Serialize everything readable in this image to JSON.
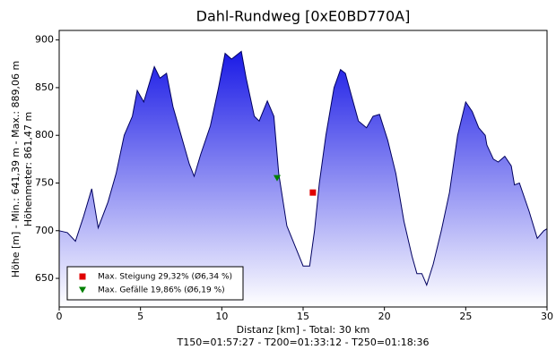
{
  "chart_data": {
    "type": "area",
    "title": "Dahl-Rundweg [0xE0BD770A]",
    "y_label": "Höhe [m] - Min.: 641,39 m - Max.: 889,06 m",
    "y_label2": "Höhenmeter: 861,47 m",
    "x_label": "Distanz [km] - Total: 30 km",
    "x_label2": "T150=01:57:27 - T200=01:33:12 - T250=01:18:36",
    "color": "#1a1ae6",
    "x": [
      0,
      0.5,
      1,
      1.5,
      2,
      2.4,
      3,
      3.5,
      4,
      4.5,
      4.8,
      5.2,
      5.85,
      6.2,
      6.6,
      7,
      7.5,
      8,
      8.3,
      8.7,
      9.3,
      9.8,
      10.2,
      10.6,
      11.2,
      11.5,
      12,
      12.3,
      12.8,
      13.2,
      13.5,
      14,
      14.6,
      15,
      15.4,
      15.7,
      16,
      16.4,
      16.9,
      17.3,
      17.6,
      18,
      18.4,
      18.9,
      19.3,
      19.7,
      20.2,
      20.7,
      21.2,
      21.7,
      22,
      22.3,
      22.6,
      23,
      23.5,
      24,
      24.5,
      25,
      25.4,
      25.8,
      26.2,
      26.3,
      26.7,
      27,
      27.4,
      27.8,
      28,
      28.3,
      28.9,
      29.4,
      29.8,
      30
    ],
    "values": [
      700,
      698,
      689,
      715,
      744,
      703,
      730,
      760,
      800,
      820,
      847,
      835,
      872,
      860,
      865,
      830,
      800,
      770,
      757,
      780,
      810,
      850,
      886,
      880,
      888,
      860,
      820,
      815,
      836,
      820,
      760,
      705,
      680,
      663,
      663,
      700,
      750,
      800,
      850,
      869,
      865,
      840,
      815,
      808,
      820,
      822,
      795,
      760,
      710,
      673,
      655,
      655,
      643,
      665,
      700,
      740,
      800,
      835,
      825,
      808,
      800,
      790,
      775,
      772,
      778,
      768,
      748,
      750,
      720,
      692,
      700,
      702
    ],
    "markers": [
      {
        "name": "Max. Steigung 29,32% (Ø6,34 %)",
        "x": 15.6,
        "y": 740,
        "color": "#e00000",
        "shape": "square"
      },
      {
        "name": "Max. Gefälle 19,86% (Ø6,19 %)",
        "x": 13.4,
        "y": 755,
        "color": "#008000",
        "shape": "triangle"
      }
    ],
    "legend": "lower left",
    "xlim": [
      0,
      30
    ],
    "xticks": [
      0,
      5,
      10,
      15,
      20,
      25,
      30
    ],
    "ylim": [
      620,
      910
    ],
    "yticks": [
      650,
      700,
      750,
      800,
      850,
      900
    ]
  }
}
